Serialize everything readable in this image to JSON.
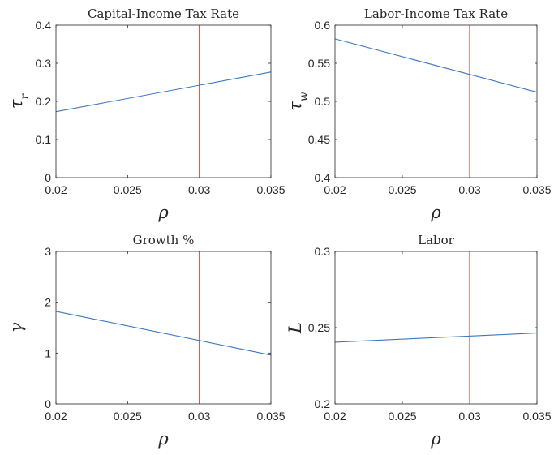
{
  "colors": {
    "series": "#3a78c2",
    "reference": "#e8534a",
    "axis": "#262626"
  },
  "chart_data": [
    {
      "type": "line",
      "title": "Capital-Income Tax Rate",
      "xlabel": "ρ",
      "ylabel": "τr",
      "xlim": [
        0.02,
        0.035
      ],
      "ylim": [
        0,
        0.4
      ],
      "xticks": [
        "0.02",
        "0.025",
        "0.03",
        "0.035"
      ],
      "yticks": [
        "0",
        "0.1",
        "0.2",
        "0.3",
        "0.4"
      ],
      "series": [
        {
          "x": [
            0.02,
            0.035
          ],
          "values": [
            0.173,
            0.277
          ]
        }
      ],
      "vline": 0.03,
      "grid": false
    },
    {
      "type": "line",
      "title": "Labor-Income Tax Rate",
      "xlabel": "ρ",
      "ylabel": "τw",
      "xlim": [
        0.02,
        0.035
      ],
      "ylim": [
        0.4,
        0.6
      ],
      "xticks": [
        "0.02",
        "0.025",
        "0.03",
        "0.035"
      ],
      "yticks": [
        "0.4",
        "0.45",
        "0.5",
        "0.55",
        "0.6"
      ],
      "series": [
        {
          "x": [
            0.02,
            0.035
          ],
          "values": [
            0.582,
            0.512
          ]
        }
      ],
      "vline": 0.03,
      "grid": false
    },
    {
      "type": "line",
      "title": "Growth %",
      "xlabel": "ρ",
      "ylabel": "γ",
      "xlim": [
        0.02,
        0.035
      ],
      "ylim": [
        0,
        3
      ],
      "xticks": [
        "0.02",
        "0.025",
        "0.03",
        "0.035"
      ],
      "yticks": [
        "0",
        "1",
        "2",
        "3"
      ],
      "series": [
        {
          "x": [
            0.02,
            0.035
          ],
          "values": [
            1.82,
            0.96
          ]
        }
      ],
      "vline": 0.03,
      "grid": false
    },
    {
      "type": "line",
      "title": "Labor",
      "xlabel": "ρ",
      "ylabel": "L",
      "xlim": [
        0.02,
        0.035
      ],
      "ylim": [
        0.2,
        0.3
      ],
      "xticks": [
        "0.02",
        "0.025",
        "0.03",
        "0.035"
      ],
      "yticks": [
        "0.2",
        "0.25",
        "0.3"
      ],
      "series": [
        {
          "x": [
            0.02,
            0.035
          ],
          "values": [
            0.2405,
            0.2465
          ]
        }
      ],
      "vline": 0.03,
      "grid": false
    }
  ]
}
